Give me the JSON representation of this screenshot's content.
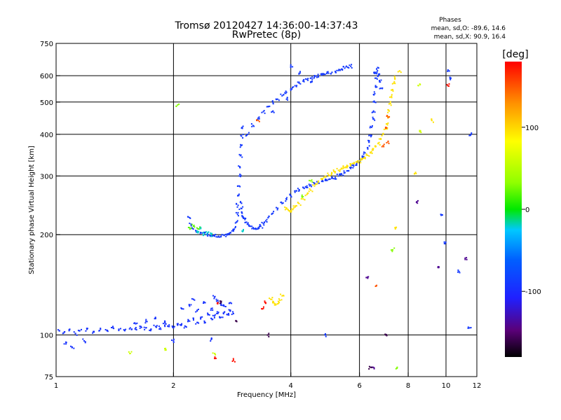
{
  "chart_data": {
    "type": "scatter",
    "title": "Tromsø 20120427 14:36:00-14:37:43",
    "subtitle": "RwPretec (8p)",
    "phases_box": {
      "heading": "Phases",
      "line_o": "mean, sd,O: -89.6, 14.6",
      "line_x": "mean, sd,X:  90.9, 16.4"
    },
    "xlabel": "Frequency [MHz]",
    "ylabel": "Stationary phase Virtual Height [km]",
    "x_scale": "log",
    "y_scale": "log",
    "xlim": [
      1,
      12
    ],
    "ylim": [
      75,
      750
    ],
    "x_ticks": [
      {
        "v": 1,
        "label": "1"
      },
      {
        "v": 2,
        "label": "2"
      },
      {
        "v": 4,
        "label": "4"
      },
      {
        "v": 6,
        "label": "6"
      },
      {
        "v": 8,
        "label": "8"
      },
      {
        "v": 10,
        "label": "10"
      },
      {
        "v": 12,
        "label": "12"
      }
    ],
    "y_ticks": [
      {
        "v": 75,
        "label": "75"
      },
      {
        "v": 100,
        "label": "100"
      },
      {
        "v": 200,
        "label": "200"
      },
      {
        "v": 300,
        "label": "300"
      },
      {
        "v": 400,
        "label": "400"
      },
      {
        "v": 500,
        "label": "500"
      },
      {
        "v": 600,
        "label": "600"
      },
      {
        "v": 750,
        "label": "750"
      }
    ],
    "grid": true,
    "colorbar": {
      "label": "[deg]",
      "range": [
        -180,
        180
      ],
      "ticks": [
        {
          "v": 100,
          "label": "100"
        },
        {
          "v": 0,
          "label": "0"
        },
        {
          "v": -100,
          "label": "-100"
        }
      ]
    },
    "series": [
      {
        "phase_deg": -95,
        "points": [
          [
            1.02,
            103
          ],
          [
            1.05,
            102
          ],
          [
            1.08,
            103
          ],
          [
            1.12,
            101
          ],
          [
            1.15,
            103
          ],
          [
            1.2,
            104
          ],
          [
            1.25,
            102
          ],
          [
            1.3,
            104
          ],
          [
            1.35,
            103
          ],
          [
            1.4,
            105
          ],
          [
            1.45,
            104
          ],
          [
            1.5,
            103
          ],
          [
            1.55,
            105
          ],
          [
            1.6,
            104
          ],
          [
            1.65,
            106
          ],
          [
            1.7,
            105
          ],
          [
            1.75,
            104
          ],
          [
            1.8,
            106
          ],
          [
            1.85,
            105
          ],
          [
            1.9,
            107
          ],
          [
            1.95,
            106
          ],
          [
            2.0,
            105
          ],
          [
            2.05,
            107
          ],
          [
            2.1,
            108
          ],
          [
            2.15,
            106
          ],
          [
            2.2,
            110
          ],
          [
            2.25,
            112
          ],
          [
            2.3,
            109
          ],
          [
            2.35,
            113
          ],
          [
            2.4,
            110
          ],
          [
            2.45,
            115
          ],
          [
            2.5,
            112
          ],
          [
            2.55,
            114
          ],
          [
            2.6,
            116
          ],
          [
            2.65,
            113
          ],
          [
            2.7,
            117
          ],
          [
            2.75,
            115
          ],
          [
            2.8,
            118
          ],
          [
            2.85,
            116
          ],
          [
            2.2,
            122
          ],
          [
            2.3,
            118
          ],
          [
            2.4,
            125
          ],
          [
            2.5,
            120
          ],
          [
            2.6,
            127
          ],
          [
            2.7,
            122
          ],
          [
            2.8,
            125
          ],
          [
            2.1,
            120
          ],
          [
            2.25,
            128
          ],
          [
            2.55,
            130
          ],
          [
            2.65,
            124
          ],
          [
            1.6,
            108
          ],
          [
            1.7,
            110
          ],
          [
            1.8,
            112
          ],
          [
            1.9,
            109
          ],
          [
            1.06,
            94
          ],
          [
            1.1,
            92
          ],
          [
            1.18,
            96
          ],
          [
            2.0,
            96
          ],
          [
            2.5,
            97
          ]
        ]
      },
      {
        "phase_deg": -90,
        "points": [
          [
            2.2,
            225
          ],
          [
            2.22,
            215
          ],
          [
            2.25,
            208
          ],
          [
            2.3,
            205
          ],
          [
            2.35,
            203
          ],
          [
            2.4,
            202
          ],
          [
            2.45,
            200
          ],
          [
            2.5,
            199
          ],
          [
            2.55,
            198
          ],
          [
            2.6,
            197
          ],
          [
            2.65,
            198
          ],
          [
            2.7,
            199
          ],
          [
            2.75,
            201
          ],
          [
            2.8,
            203
          ],
          [
            2.85,
            205
          ],
          [
            2.88,
            210
          ],
          [
            2.9,
            218
          ],
          [
            2.92,
            230
          ],
          [
            2.93,
            245
          ],
          [
            2.94,
            262
          ],
          [
            2.95,
            280
          ],
          [
            2.95,
            300
          ],
          [
            2.96,
            320
          ],
          [
            2.97,
            345
          ],
          [
            2.98,
            370
          ],
          [
            2.99,
            395
          ],
          [
            3.0,
            420
          ],
          [
            2.97,
            250
          ],
          [
            2.98,
            240
          ],
          [
            3.0,
            232
          ],
          [
            3.02,
            226
          ],
          [
            3.05,
            222
          ],
          [
            3.08,
            218
          ],
          [
            3.1,
            215
          ],
          [
            3.15,
            212
          ],
          [
            3.2,
            210
          ],
          [
            3.25,
            209
          ],
          [
            3.3,
            210
          ],
          [
            3.35,
            212
          ],
          [
            3.4,
            216
          ],
          [
            3.45,
            220
          ],
          [
            3.5,
            225
          ],
          [
            3.6,
            232
          ],
          [
            3.7,
            240
          ],
          [
            3.8,
            248
          ],
          [
            3.9,
            255
          ],
          [
            4.0,
            262
          ],
          [
            4.1,
            268
          ],
          [
            4.2,
            273
          ],
          [
            4.3,
            277
          ],
          [
            4.4,
            280
          ],
          [
            4.5,
            282
          ],
          [
            4.6,
            284
          ],
          [
            4.7,
            287
          ],
          [
            4.8,
            289
          ],
          [
            4.9,
            291
          ],
          [
            5.0,
            293
          ],
          [
            5.1,
            295
          ],
          [
            5.2,
            297
          ],
          [
            5.3,
            300
          ],
          [
            5.4,
            303
          ],
          [
            5.5,
            307
          ],
          [
            5.6,
            311
          ],
          [
            5.7,
            316
          ],
          [
            5.8,
            321
          ],
          [
            5.9,
            327
          ],
          [
            6.0,
            334
          ],
          [
            6.1,
            342
          ],
          [
            6.2,
            352
          ],
          [
            6.3,
            365
          ],
          [
            6.35,
            380
          ],
          [
            6.4,
            398
          ],
          [
            6.45,
            420
          ],
          [
            6.5,
            445
          ],
          [
            6.52,
            470
          ],
          [
            6.55,
            500
          ],
          [
            6.57,
            530
          ],
          [
            6.6,
            560
          ],
          [
            6.62,
            590
          ],
          [
            6.65,
            615
          ],
          [
            6.68,
            635
          ],
          [
            6.6,
            610
          ],
          [
            6.7,
            600
          ],
          [
            6.75,
            580
          ],
          [
            6.8,
            550
          ],
          [
            3.1,
            400
          ],
          [
            3.2,
            425
          ],
          [
            3.3,
            448
          ],
          [
            3.4,
            468
          ],
          [
            3.5,
            485
          ],
          [
            3.6,
            498
          ],
          [
            3.7,
            510
          ],
          [
            3.8,
            522
          ],
          [
            3.9,
            535
          ],
          [
            4.0,
            548
          ],
          [
            4.1,
            560
          ],
          [
            4.2,
            570
          ],
          [
            4.3,
            578
          ],
          [
            4.4,
            585
          ],
          [
            4.5,
            590
          ],
          [
            4.6,
            595
          ],
          [
            4.7,
            598
          ],
          [
            4.8,
            602
          ],
          [
            4.9,
            606
          ],
          [
            5.0,
            610
          ],
          [
            5.1,
            614
          ],
          [
            5.2,
            618
          ],
          [
            5.3,
            622
          ],
          [
            5.4,
            628
          ],
          [
            5.5,
            632
          ],
          [
            5.6,
            636
          ],
          [
            5.7,
            640
          ],
          [
            4.9,
            100
          ],
          [
            4.0,
            640
          ],
          [
            4.2,
            610
          ],
          [
            4.5,
            575
          ],
          [
            3.6,
            470
          ],
          [
            3.9,
            510
          ],
          [
            10.2,
            620
          ],
          [
            9.7,
            230
          ],
          [
            9.9,
            190
          ],
          [
            10.8,
            155
          ],
          [
            11.5,
            105
          ],
          [
            11.6,
            400
          ],
          [
            10.3,
            590
          ]
        ]
      },
      {
        "phase_deg": 95,
        "points": [
          [
            3.9,
            240
          ],
          [
            3.95,
            236
          ],
          [
            4.0,
            235
          ],
          [
            4.05,
            238
          ],
          [
            4.1,
            242
          ],
          [
            4.2,
            248
          ],
          [
            4.3,
            256
          ],
          [
            4.4,
            264
          ],
          [
            4.5,
            272
          ],
          [
            4.6,
            280
          ],
          [
            4.7,
            287
          ],
          [
            4.8,
            293
          ],
          [
            4.9,
            298
          ],
          [
            5.0,
            302
          ],
          [
            5.1,
            306
          ],
          [
            5.2,
            309
          ],
          [
            5.3,
            312
          ],
          [
            5.4,
            315
          ],
          [
            5.5,
            318
          ],
          [
            5.6,
            321
          ],
          [
            5.7,
            324
          ],
          [
            5.8,
            327
          ],
          [
            5.9,
            330
          ],
          [
            6.0,
            333
          ],
          [
            6.1,
            337
          ],
          [
            6.2,
            341
          ],
          [
            6.3,
            346
          ],
          [
            6.4,
            352
          ],
          [
            6.5,
            359
          ],
          [
            6.6,
            367
          ],
          [
            6.7,
            376
          ],
          [
            6.8,
            387
          ],
          [
            6.9,
            400
          ],
          [
            7.0,
            415
          ],
          [
            7.05,
            430
          ],
          [
            7.1,
            448
          ],
          [
            7.15,
            470
          ],
          [
            7.2,
            495
          ],
          [
            7.25,
            520
          ],
          [
            7.3,
            545
          ],
          [
            7.35,
            570
          ],
          [
            7.4,
            590
          ],
          [
            3.55,
            128
          ],
          [
            3.6,
            125
          ],
          [
            3.65,
            123
          ],
          [
            3.7,
            124
          ],
          [
            3.75,
            127
          ],
          [
            3.8,
            131
          ],
          [
            8.3,
            305
          ],
          [
            9.2,
            440
          ],
          [
            7.4,
            210
          ],
          [
            7.6,
            620
          ]
        ]
      },
      {
        "phase_deg": 150,
        "points": [
          [
            7.0,
            420
          ],
          [
            7.1,
            450
          ],
          [
            6.9,
            370
          ],
          [
            3.3,
            440
          ],
          [
            6.6,
            140
          ],
          [
            7.1,
            380
          ]
        ]
      },
      {
        "phase_deg": 175,
        "points": [
          [
            2.85,
            84
          ],
          [
            3.4,
            120
          ],
          [
            3.45,
            125
          ],
          [
            10.1,
            560
          ],
          [
            2.6,
            125
          ],
          [
            2.55,
            85
          ]
        ]
      },
      {
        "phase_deg": 60,
        "points": [
          [
            1.55,
            88
          ],
          [
            2.55,
            88
          ],
          [
            8.5,
            560
          ],
          [
            8.6,
            410
          ],
          [
            1.9,
            91
          ]
        ]
      },
      {
        "phase_deg": 30,
        "points": [
          [
            2.05,
            490
          ],
          [
            7.5,
            80
          ],
          [
            4.5,
            290
          ],
          [
            4.3,
            260
          ],
          [
            7.3,
            180
          ]
        ]
      },
      {
        "phase_deg": -20,
        "points": [
          [
            2.3,
            205
          ],
          [
            2.35,
            210
          ],
          [
            2.5,
            200
          ],
          [
            3.0,
            205
          ],
          [
            2.45,
            203
          ],
          [
            2.4,
            201
          ]
        ]
      },
      {
        "phase_deg": -140,
        "points": [
          [
            6.3,
            148
          ],
          [
            6.5,
            80
          ],
          [
            8.4,
            250
          ],
          [
            9.6,
            160
          ],
          [
            11.2,
            170
          ]
        ]
      },
      {
        "phase_deg": 20,
        "points": [
          [
            2.2,
            210
          ],
          [
            2.32,
            208
          ],
          [
            2.25,
            212
          ]
        ]
      },
      {
        "phase_deg": -160,
        "points": [
          [
            2.65,
            125
          ],
          [
            2.9,
            110
          ],
          [
            3.5,
            100
          ],
          [
            7.0,
            100
          ],
          [
            6.4,
            80
          ]
        ]
      }
    ]
  }
}
